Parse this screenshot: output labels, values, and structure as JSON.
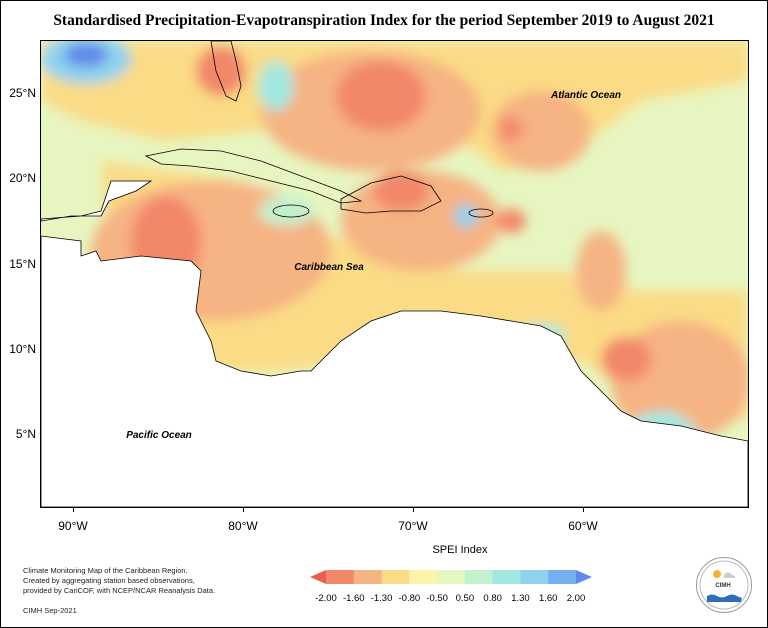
{
  "title": "Standardised Precipitation-Evapotranspiration Index for the period September 2019 to August 2021",
  "map": {
    "labels": {
      "atlantic": "Atlantic Ocean",
      "caribbean": "Caribbean Sea",
      "pacific": "Pacific Ocean"
    },
    "lat_labels": [
      "25°N",
      "20°N",
      "15°N",
      "10°N",
      "5°N"
    ],
    "lon_labels": [
      "90°W",
      "80°W",
      "70°W",
      "60°W"
    ]
  },
  "legend": {
    "title": "SPEI Index",
    "ticks": [
      "-2.00",
      "-1.60",
      "-1.30",
      "-0.80",
      "-0.50",
      "0.50",
      "0.80",
      "1.30",
      "1.60",
      "2.00"
    ],
    "colors": [
      "#e8614f",
      "#f2876a",
      "#f6b383",
      "#fbdb86",
      "#fbf4aa",
      "#e7f6c0",
      "#c3f0cd",
      "#a2e8e0",
      "#8fd2ee",
      "#76aef0",
      "#6189e8"
    ]
  },
  "credits": {
    "line1": "Climate Monitoring Map of the Caribbean Region.",
    "line2": "Created by aggregating station based observations,",
    "line3": "provided by CariCOF, with NCEP/NCAR Reanalysis Data.",
    "line4": "CIMH Sep-2021"
  },
  "logo": {
    "text": "CIMH"
  }
}
